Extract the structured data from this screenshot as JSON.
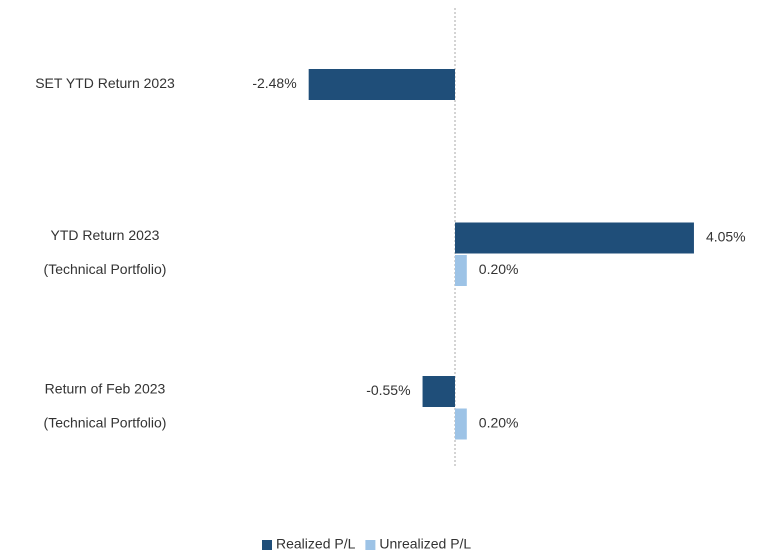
{
  "chart_data": {
    "type": "bar",
    "orientation": "horizontal",
    "categories": [
      [
        "SET YTD Return 2023"
      ],
      [
        "YTD Return 2023",
        "(Technical Portfolio)"
      ],
      [
        "Return of Feb 2023",
        "(Technical Portfolio)"
      ]
    ],
    "series": [
      {
        "name": "Realized P/L",
        "color": "#1f4e79",
        "values": [
          -2.48,
          4.05,
          -0.55
        ],
        "value_labels": [
          "-2.48%",
          "4.05%",
          "-0.55%"
        ]
      },
      {
        "name": "Unrealized P/L",
        "color": "#9dc3e6",
        "values": [
          null,
          0.2,
          0.2
        ],
        "value_labels": [
          null,
          "0.20%",
          "0.20%"
        ]
      }
    ],
    "xlim": [
      -3,
      5
    ],
    "legend": "bottom"
  }
}
